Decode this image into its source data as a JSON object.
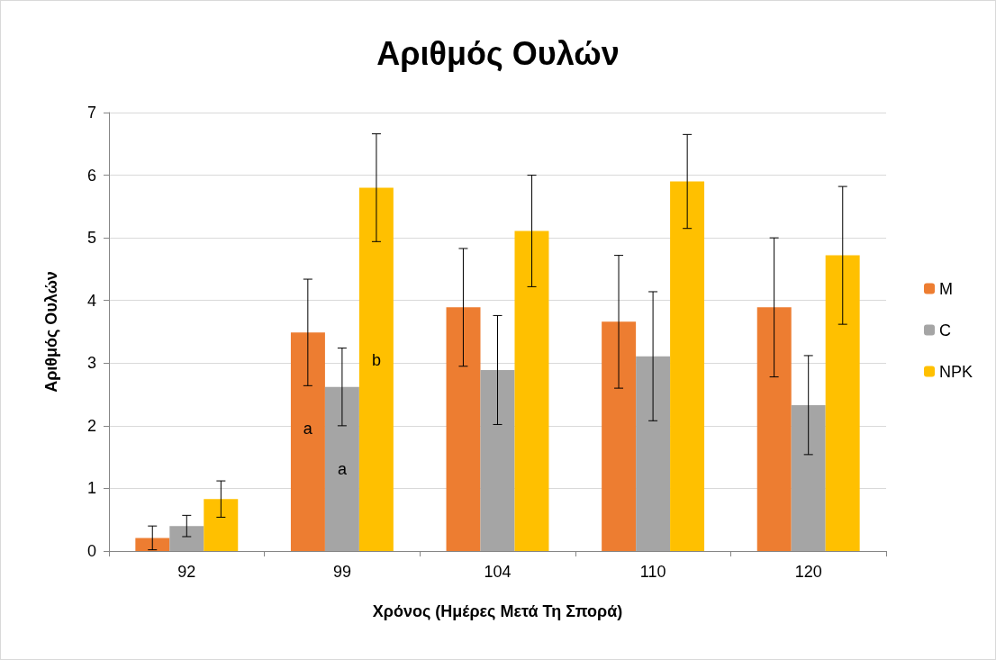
{
  "chart_data": {
    "type": "bar",
    "title": "Αριθμός Ουλών",
    "xlabel": "Χρόνος (Ημέρες Μετά Τη Σπορά)",
    "ylabel": "Αριθμός Ουλών",
    "categories": [
      "92",
      "99",
      "104",
      "110",
      "120"
    ],
    "series": [
      {
        "name": "M",
        "color": "#ed7d31",
        "values": [
          0.21,
          3.49,
          3.89,
          3.66,
          3.89
        ],
        "errors": [
          0.19,
          0.85,
          0.94,
          1.06,
          1.11
        ]
      },
      {
        "name": "C",
        "color": "#a5a5a5",
        "values": [
          0.4,
          2.62,
          2.89,
          3.11,
          2.33
        ],
        "errors": [
          0.17,
          0.62,
          0.87,
          1.03,
          0.79
        ]
      },
      {
        "name": "NPK",
        "color": "#ffc000",
        "values": [
          0.83,
          5.8,
          5.11,
          5.9,
          4.72
        ],
        "errors": [
          0.29,
          0.86,
          0.89,
          0.75,
          1.1
        ]
      }
    ],
    "annotations": [
      {
        "text": "a",
        "x": "99",
        "y": 1.95
      },
      "a",
      {
        "text": "b",
        "x": "99",
        "y": 3.05
      }
    ],
    "ylim": [
      0,
      7
    ],
    "yticks": [
      0,
      1,
      2,
      3,
      4,
      5,
      6,
      7
    ],
    "grid": "y",
    "legend": "right"
  }
}
